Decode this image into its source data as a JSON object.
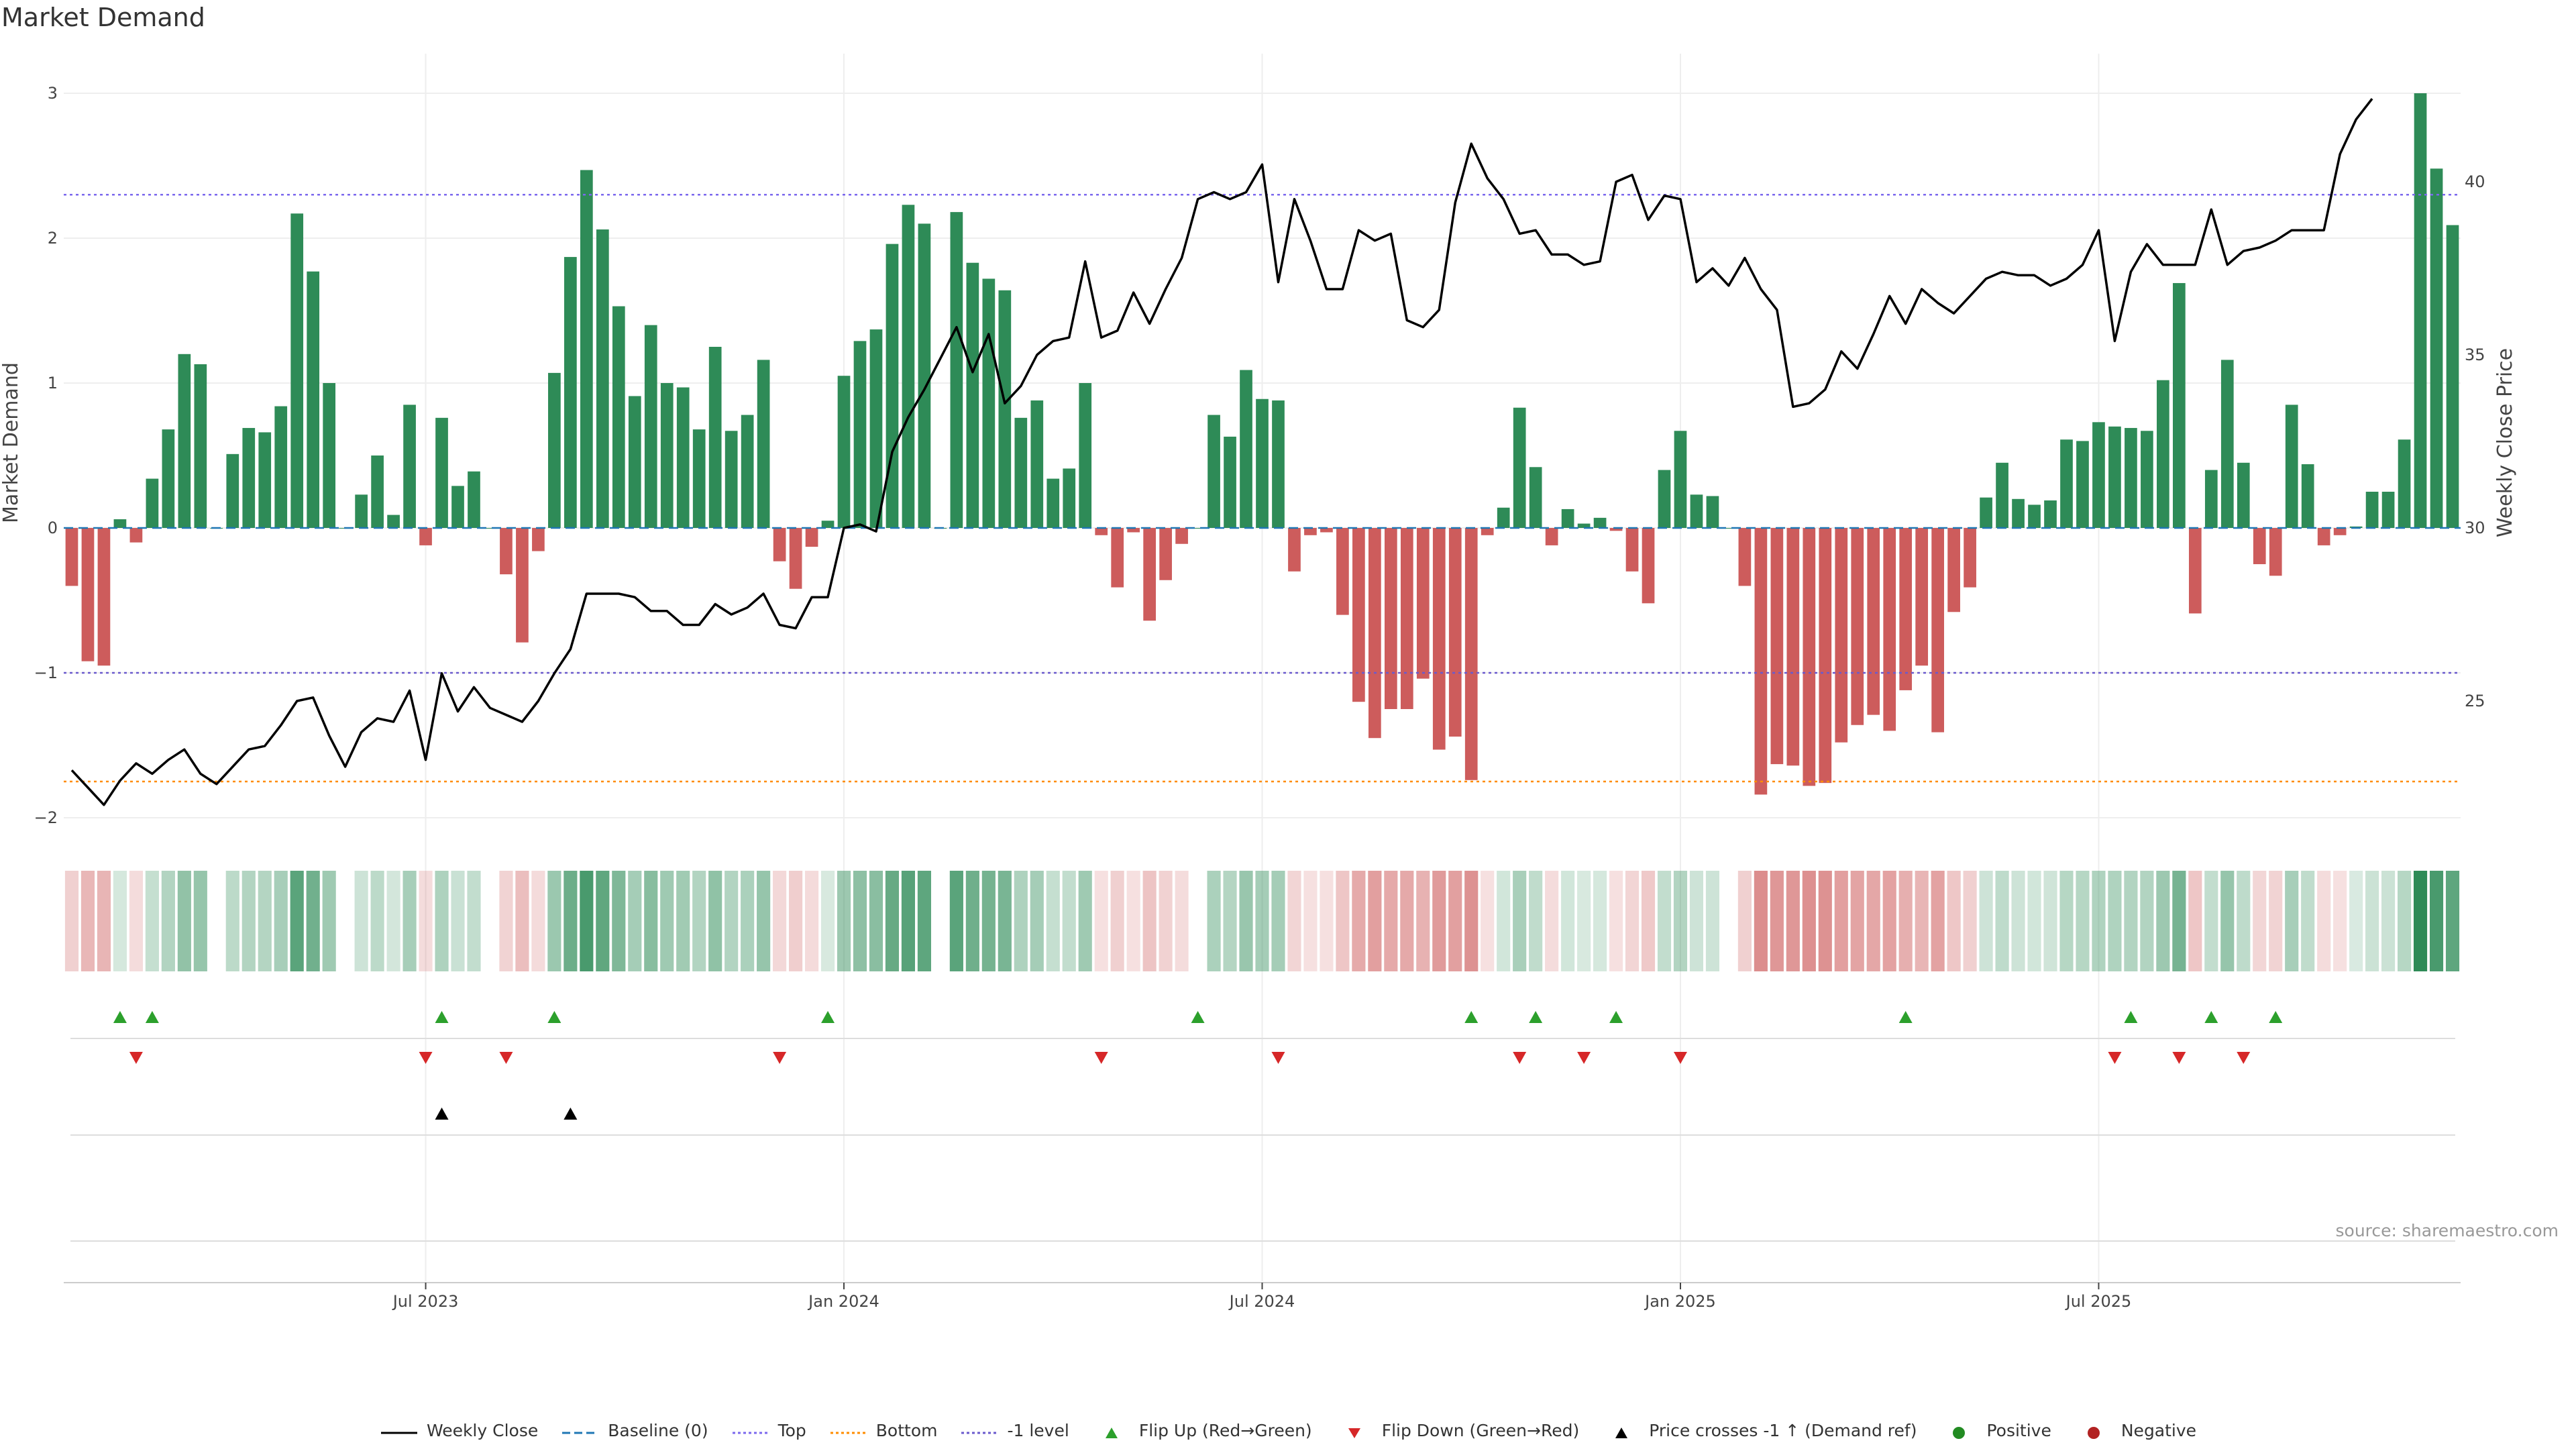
{
  "title": "Market Demand",
  "source": "source: sharemaestro.com",
  "colors": {
    "positive_bar": "#2e8b57",
    "negative_bar": "#cd5c5c",
    "price_line": "#000000",
    "baseline": "#1f77b4",
    "top": "#7b68ee",
    "bottom": "#ff8c00",
    "minus_one": "#6a5acd",
    "flip_up": "#2ca02c",
    "flip_down": "#d62728",
    "cross": "#000000",
    "positive_dot": "#228b22",
    "negative_dot": "#b22222"
  },
  "legend": [
    {
      "label": "Weekly Close",
      "symbol": "solid-line"
    },
    {
      "label": "Baseline (0)",
      "symbol": "dash-line"
    },
    {
      "label": "Top",
      "symbol": "dot-line"
    },
    {
      "label": "Bottom",
      "symbol": "dot-line-orange"
    },
    {
      "label": "-1 level",
      "symbol": "dot-line-purple"
    },
    {
      "label": "Flip Up (Red→Green)",
      "symbol": "triangle-up-green"
    },
    {
      "label": "Flip Down (Green→Red)",
      "symbol": "triangle-down-red"
    },
    {
      "label": "Price crosses -1 ↑ (Demand ref)",
      "symbol": "triangle-up-black"
    },
    {
      "label": "Positive",
      "symbol": "dot-green"
    },
    {
      "label": "Negative",
      "symbol": "dot-red"
    }
  ],
  "chart_data": {
    "type": "bar",
    "title": "Market Demand",
    "ylabel_left": "Market Demand",
    "ylabel_right": "Weekly Close Price",
    "ylim_left": [
      -2.2,
      3.2
    ],
    "ylim_right": [
      20,
      42.5
    ],
    "yticks_left": [
      "3",
      "2",
      "1",
      "0",
      "−1",
      "−2"
    ],
    "yticks_left_values": [
      3,
      2,
      1,
      0,
      -1,
      -2
    ],
    "yticks_right": [
      "40",
      "35",
      "30",
      "25"
    ],
    "yticks_right_values": [
      40,
      35,
      30,
      25
    ],
    "xticks": [
      "Jul 2023",
      "Jan 2024",
      "Jul 2024",
      "Jan 2025",
      "Jul 2025"
    ],
    "xtick_week_index": [
      22,
      48,
      74,
      100,
      126
    ],
    "reference_lines": {
      "baseline": 0,
      "top": 2.3,
      "bottom": -1.75,
      "minus_one": -1
    },
    "grid": true,
    "legend_position": "bottom",
    "demand": [
      -0.4,
      -0.92,
      -0.95,
      0.06,
      -0.1,
      0.34,
      0.68,
      1.2,
      1.13,
      0,
      0.51,
      0.69,
      0.66,
      0.84,
      2.17,
      1.77,
      1,
      0,
      0.23,
      0.5,
      0.09,
      0.85,
      -0.12,
      0.76,
      0.29,
      0.39,
      0,
      -0.32,
      -0.79,
      -0.16,
      1.07,
      1.87,
      2.47,
      2.06,
      1.53,
      0.91,
      1.4,
      1,
      0.97,
      0.68,
      1.25,
      0.67,
      0.78,
      1.16,
      -0.23,
      -0.42,
      -0.13,
      0.05,
      1.05,
      1.29,
      1.37,
      1.96,
      2.23,
      2.1,
      0,
      2.18,
      1.83,
      1.72,
      1.64,
      0.76,
      0.88,
      0.34,
      0.41,
      1,
      -0.05,
      -0.41,
      -0.03,
      -0.64,
      -0.36,
      -0.11,
      0,
      0.78,
      0.63,
      1.09,
      0.89,
      0.88,
      -0.3,
      -0.05,
      -0.03,
      -0.6,
      -1.2,
      -1.45,
      -1.25,
      -1.25,
      -1.04,
      -1.53,
      -1.44,
      -1.74,
      -0.05,
      0.14,
      0.83,
      0.42,
      -0.12,
      0.13,
      0.03,
      0.07,
      -0.02,
      -0.3,
      -0.52,
      0.4,
      0.67,
      0.23,
      0.22,
      0.0,
      -0.4,
      -1.84,
      -1.63,
      -1.64,
      -1.78,
      -1.76,
      -1.48,
      -1.36,
      -1.29,
      -1.4,
      -1.12,
      -0.95,
      -1.41,
      -0.58,
      -0.41,
      0.21,
      0.45,
      0.2,
      0.16,
      0.19,
      0.61,
      0.6,
      0.73,
      0.7,
      0.69,
      0.67,
      1.02,
      1.69,
      -0.59,
      0.4,
      1.16,
      0.45,
      -0.25,
      -0.33,
      0.85,
      0.44,
      -0.12,
      -0.05,
      0.01,
      0.25,
      0.25,
      0.61,
      3.0,
      2.48,
      2.09
    ],
    "price": [
      23.0,
      22.5,
      22.0,
      22.7,
      23.2,
      22.9,
      23.3,
      23.6,
      22.9,
      22.6,
      23.1,
      23.6,
      23.7,
      24.3,
      25.0,
      25.1,
      24.0,
      23.1,
      24.1,
      24.5,
      24.4,
      25.3,
      23.3,
      25.8,
      24.7,
      25.4,
      24.8,
      24.6,
      24.4,
      25.0,
      25.8,
      26.5,
      28.1,
      28.1,
      28.1,
      28.0,
      27.6,
      27.6,
      27.2,
      27.2,
      27.8,
      27.5,
      27.7,
      28.1,
      27.2,
      27.1,
      28.0,
      28.0,
      30.0,
      30.1,
      29.9,
      32.2,
      33.2,
      34.0,
      34.9,
      35.8,
      34.5,
      35.6,
      33.6,
      34.1,
      35.0,
      35.4,
      35.5,
      37.7,
      35.5,
      35.7,
      36.8,
      35.9,
      36.9,
      37.8,
      39.5,
      39.7,
      39.5,
      39.7,
      40.5,
      37.1,
      39.5,
      38.3,
      36.9,
      36.9,
      38.6,
      38.3,
      38.5,
      36.0,
      35.8,
      36.3,
      39.4,
      41.1,
      40.1,
      39.5,
      38.5,
      38.6,
      37.9,
      37.9,
      37.6,
      37.7,
      40.0,
      40.2,
      38.9,
      39.6,
      39.5,
      37.1,
      37.5,
      37.0,
      37.8,
      36.9,
      36.3,
      33.5,
      33.6,
      34.0,
      35.1,
      34.6,
      35.6,
      36.7,
      35.9,
      36.9,
      36.5,
      36.2,
      36.7,
      37.2,
      37.4,
      37.3,
      37.3,
      37.0,
      37.2,
      37.6,
      38.6,
      35.4,
      37.4,
      38.2,
      37.6,
      37.6,
      37.6,
      39.2,
      37.6,
      38.0,
      38.1,
      38.3,
      38.6,
      38.6,
      38.6,
      40.8,
      41.8,
      42.4
    ],
    "flip_up_weeks": [
      3,
      5,
      23,
      30,
      47,
      70,
      87,
      91,
      96,
      114,
      128,
      133,
      137
    ],
    "flip_down_weeks": [
      4,
      22,
      27,
      44,
      64,
      75,
      90,
      94,
      100,
      127,
      131,
      135
    ],
    "price_cross_up_weeks": [
      23,
      31
    ]
  }
}
